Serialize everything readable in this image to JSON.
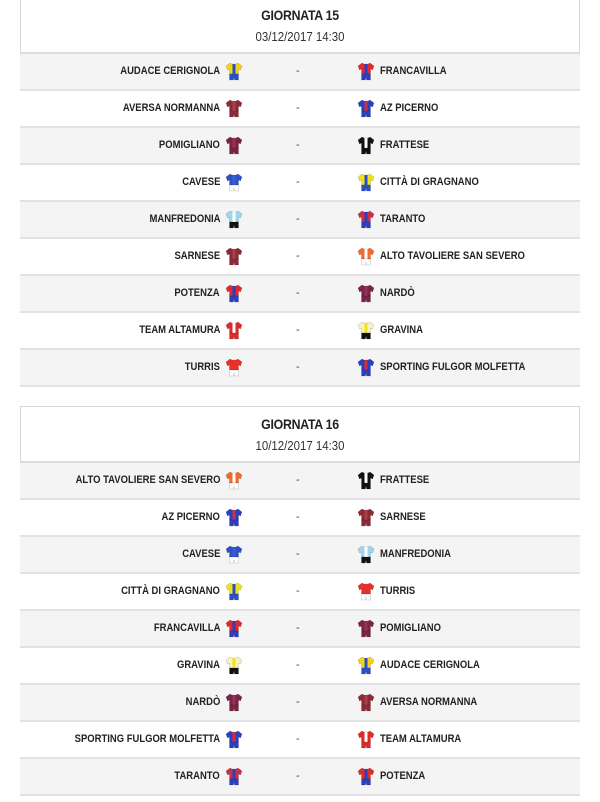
{
  "rounds": [
    {
      "title": "GIORNATA 15",
      "date": "03/12/2017 14:30",
      "matches": [
        {
          "home": "AUDACE CERIGNOLA",
          "away": "FRANCAVILLA",
          "separator": "-",
          "home_kit": [
            "#f2d21b",
            "#2a4fc9",
            "#2a4fc9"
          ],
          "away_kit": [
            "#e02a2a",
            "#2c3fc0",
            "#2c3fc0"
          ]
        },
        {
          "home": "AVERSA NORMANNA",
          "away": "AZ PICERNO",
          "separator": "-",
          "home_kit": [
            "#8e2a35",
            "#a8404c",
            "#8e2a35"
          ],
          "away_kit": [
            "#2c3fc0",
            "#c8304a",
            "#2c3fc0"
          ]
        },
        {
          "home": "POMIGLIANO",
          "away": "FRATTESE",
          "separator": "-",
          "home_kit": [
            "#7a2345",
            "#94335a",
            "#7a2345"
          ],
          "away_kit": [
            "#111111",
            "#ffffff",
            "#111111"
          ]
        },
        {
          "home": "CAVESE",
          "away": "CITTÀ DI GRAGNANO",
          "separator": "-",
          "home_kit": [
            "#2e4fc7",
            "#3b5bd1",
            "#ffffff"
          ],
          "away_kit": [
            "#f2e21b",
            "#2a4fc9",
            "#2a4fc9"
          ]
        },
        {
          "home": "MANFREDONIA",
          "away": "TARANTO",
          "separator": "-",
          "home_kit": [
            "#9fd5ee",
            "#ffffff",
            "#111111"
          ],
          "away_kit": [
            "#c8304a",
            "#2c3fc0",
            "#2c3fc0"
          ]
        },
        {
          "home": "SARNESE",
          "away": "ALTO TAVOLIERE SAN SEVERO",
          "separator": "-",
          "home_kit": [
            "#8e2a35",
            "#a8404c",
            "#8e2a35"
          ],
          "away_kit": [
            "#f26a2a",
            "#ffffff",
            "#ffffff"
          ]
        },
        {
          "home": "POTENZA",
          "away": "NARDÒ",
          "separator": "-",
          "home_kit": [
            "#e02a2a",
            "#2c3fc0",
            "#2c3fc0"
          ],
          "away_kit": [
            "#7a2345",
            "#94335a",
            "#7a2345"
          ]
        },
        {
          "home": "TEAM ALTAMURA",
          "away": "GRAVINA",
          "separator": "-",
          "home_kit": [
            "#e02a2a",
            "#ffffff",
            "#e02a2a"
          ],
          "away_kit": [
            "#f7f3c0",
            "#f2e21b",
            "#111111"
          ]
        },
        {
          "home": "TURRIS",
          "away": "SPORTING FULGOR MOLFETTA",
          "separator": "-",
          "home_kit": [
            "#e8302a",
            "#e8302a",
            "#ffffff"
          ],
          "away_kit": [
            "#2c3fc0",
            "#e02a2a",
            "#2c3fc0"
          ]
        }
      ]
    },
    {
      "title": "GIORNATA 16",
      "date": "10/12/2017 14:30",
      "matches": [
        {
          "home": "ALTO TAVOLIERE SAN SEVERO",
          "away": "FRATTESE",
          "separator": "-",
          "home_kit": [
            "#f26a2a",
            "#ffffff",
            "#ffffff"
          ],
          "away_kit": [
            "#111111",
            "#ffffff",
            "#111111"
          ]
        },
        {
          "home": "AZ PICERNO",
          "away": "SARNESE",
          "separator": "-",
          "home_kit": [
            "#2c3fc0",
            "#c8304a",
            "#2c3fc0"
          ],
          "away_kit": [
            "#8e2a35",
            "#a8404c",
            "#8e2a35"
          ]
        },
        {
          "home": "CAVESE",
          "away": "MANFREDONIA",
          "separator": "-",
          "home_kit": [
            "#2e4fc7",
            "#3b5bd1",
            "#ffffff"
          ],
          "away_kit": [
            "#9fd5ee",
            "#ffffff",
            "#111111"
          ]
        },
        {
          "home": "CITTÀ DI GRAGNANO",
          "away": "TURRIS",
          "separator": "-",
          "home_kit": [
            "#f2e21b",
            "#2a4fc9",
            "#2a4fc9"
          ],
          "away_kit": [
            "#e8302a",
            "#e8302a",
            "#ffffff"
          ]
        },
        {
          "home": "FRANCAVILLA",
          "away": "POMIGLIANO",
          "separator": "-",
          "home_kit": [
            "#e02a2a",
            "#2c3fc0",
            "#2c3fc0"
          ],
          "away_kit": [
            "#7a2345",
            "#94335a",
            "#7a2345"
          ]
        },
        {
          "home": "GRAVINA",
          "away": "AUDACE CERIGNOLA",
          "separator": "-",
          "home_kit": [
            "#f7f3c0",
            "#f2e21b",
            "#111111"
          ],
          "away_kit": [
            "#f2d21b",
            "#2a4fc9",
            "#2a4fc9"
          ]
        },
        {
          "home": "NARDÒ",
          "away": "AVERSA NORMANNA",
          "separator": "-",
          "home_kit": [
            "#7a2345",
            "#94335a",
            "#7a2345"
          ],
          "away_kit": [
            "#8e2a35",
            "#a8404c",
            "#8e2a35"
          ]
        },
        {
          "home": "SPORTING FULGOR MOLFETTA",
          "away": "TEAM ALTAMURA",
          "separator": "-",
          "home_kit": [
            "#2c3fc0",
            "#e02a2a",
            "#2c3fc0"
          ],
          "away_kit": [
            "#e02a2a",
            "#ffffff",
            "#e02a2a"
          ]
        },
        {
          "home": "TARANTO",
          "away": "POTENZA",
          "separator": "-",
          "home_kit": [
            "#c8304a",
            "#2c3fc0",
            "#2c3fc0"
          ],
          "away_kit": [
            "#e02a2a",
            "#2c3fc0",
            "#2c3fc0"
          ]
        }
      ]
    }
  ]
}
